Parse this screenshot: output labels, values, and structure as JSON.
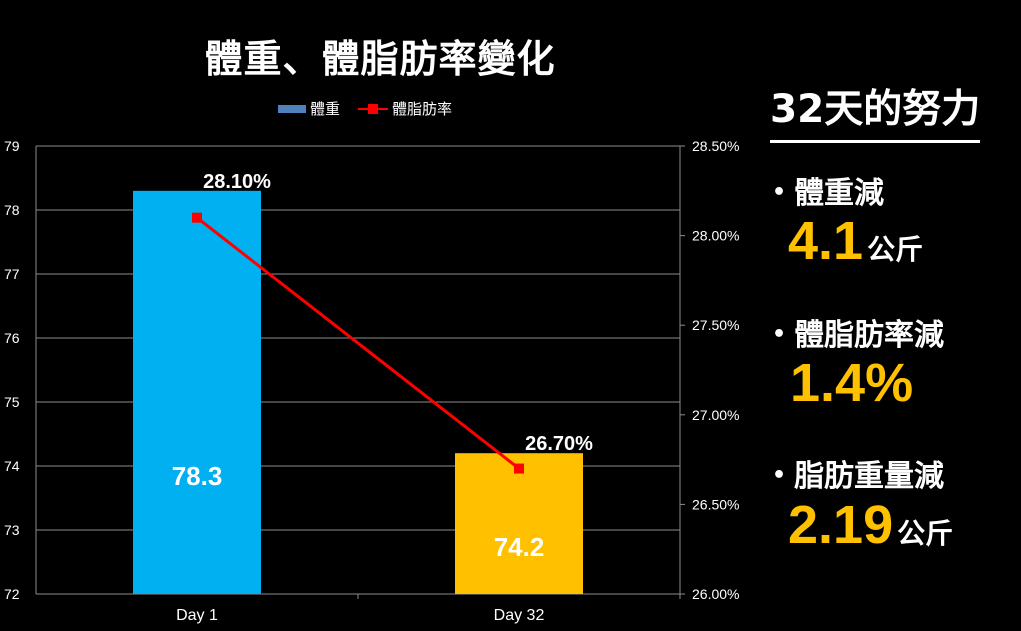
{
  "chart_data": {
    "type": "bar",
    "title": "體重、體脂肪率變化",
    "categories": [
      "Day 1",
      "Day 32"
    ],
    "series": [
      {
        "name": "體重",
        "axis": "left",
        "kind": "bar",
        "values": [
          78.3,
          74.2
        ],
        "labels": [
          "78.3",
          "74.2"
        ],
        "colors": [
          "#00b0f0",
          "#ffc000"
        ]
      },
      {
        "name": "體脂肪率",
        "axis": "right",
        "kind": "line",
        "values": [
          0.281,
          0.267
        ],
        "labels": [
          "28.10%",
          "26.70%"
        ],
        "color": "#ff0000"
      }
    ],
    "y_left": {
      "ylim": [
        72,
        79
      ],
      "ticks": [
        "72",
        "73",
        "74",
        "75",
        "76",
        "77",
        "78",
        "79"
      ]
    },
    "y_right": {
      "ylim": [
        0.26,
        0.285
      ],
      "ticks": [
        "26.00%",
        "26.50%",
        "27.00%",
        "27.50%",
        "28.00%",
        "28.50%"
      ]
    },
    "grid": true,
    "legend_position": "top"
  },
  "sidebar": {
    "title": "32天的努力",
    "items": [
      {
        "label": "體重減",
        "value": "4.1",
        "unit": "公斤"
      },
      {
        "label": "體脂肪率減",
        "value": "1.4%",
        "unit": ""
      },
      {
        "label": "脂肪重量減",
        "value": "2.19",
        "unit": "公斤"
      }
    ]
  },
  "colors": {
    "accent": "#ffc000",
    "bar1": "#00b0f0",
    "bar2": "#ffc000",
    "line": "#ff0000",
    "legend_bar": "#4f81bd"
  }
}
